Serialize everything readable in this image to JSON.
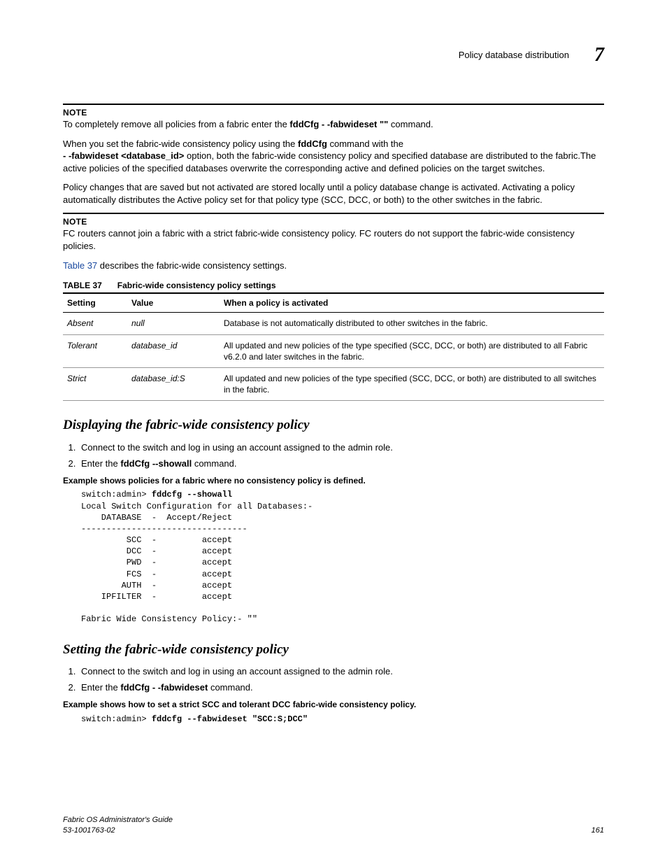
{
  "header": {
    "section_title": "Policy database distribution",
    "chapter": "7"
  },
  "notes": {
    "label": "NOTE",
    "note1": "To completely remove all policies from a fabric enter the ",
    "note1_cmd1": "fddCfg ",
    "note1_cmd2": "- -fabwideset \"\"",
    "note1_tail": " command.",
    "note2_a": "FC routers cannot join a fabric with a strict fabric-wide consistency policy. FC routers do not support the fabric-wide consistency policies."
  },
  "paragraphs": {
    "p1_a": "When you set the fabric-wide consistency policy using the ",
    "p1_cmd1": "fddCfg",
    "p1_b": " command with the ",
    "p1_cmd2": "- -fabwideset <database_id>",
    "p1_c": "  option, both the fabric-wide consistency policy and specified database are distributed to the fabric.The active policies of the specified databases overwrite the corresponding active and defined policies on the target switches.",
    "p2": "Policy changes that are saved but not activated are stored locally until a policy database change is activated. Activating a policy automatically distributes the Active policy set for that policy type (SCC, DCC, or both) to the other switches in the fabric.",
    "p3_link": "Table 37",
    "p3_tail": " describes the fabric-wide consistency settings."
  },
  "table": {
    "number": "TABLE 37",
    "title": "Fabric-wide consistency policy settings",
    "headers": [
      "Setting",
      "Value",
      "When a policy is activated"
    ],
    "rows": [
      {
        "setting": "Absent",
        "value": "null",
        "desc": "Database is not automatically distributed to other switches in the fabric."
      },
      {
        "setting": "Tolerant",
        "value": "database_id",
        "desc": "All updated and new policies of the type specified (SCC, DCC, or both) are distributed to all Fabric v6.2.0 and later switches in the fabric."
      },
      {
        "setting": "Strict",
        "value": "database_id:S",
        "desc": "All updated and new policies of the type specified (SCC, DCC, or both) are distributed to all switches in the fabric."
      }
    ]
  },
  "section1": {
    "heading": "Displaying the fabric-wide consistency policy",
    "step1": "Connect to the switch and log in using an account assigned to the admin role.",
    "step2_a": "Enter the ",
    "step2_cmd": "fddCfg --showall",
    "step2_b": " command.",
    "example_label": "Example  shows policies for a fabric where no consistency policy is defined.",
    "code_prompt": "switch:admin> ",
    "code_cmd": "fddcfg --showall",
    "code_body": "Local Switch Configuration for all Databases:-\n    DATABASE  -  Accept/Reject\n---------------------------------\n         SCC  -         accept\n         DCC  -         accept\n         PWD  -         accept\n         FCS  -         accept\n        AUTH  -         accept\n    IPFILTER  -         accept\n\nFabric Wide Consistency Policy:- \"\""
  },
  "section2": {
    "heading": "Setting the fabric-wide consistency policy",
    "step1": "Connect to the switch and log in using an account assigned to the admin role.",
    "step2_a": "Enter the ",
    "step2_cmd1": "fddCfg ",
    "step2_cmd2": "- -fabwideset",
    "step2_b": " command.",
    "example_label": "Example  shows how to set a strict SCC and tolerant DCC fabric-wide consistency policy.",
    "code_prompt": "switch:admin> ",
    "code_cmd": "fddcfg --fabwideset \"SCC:S;DCC\""
  },
  "footer": {
    "book": "Fabric OS Administrator's Guide",
    "docnum": "53-1001763-02",
    "page": "161"
  }
}
